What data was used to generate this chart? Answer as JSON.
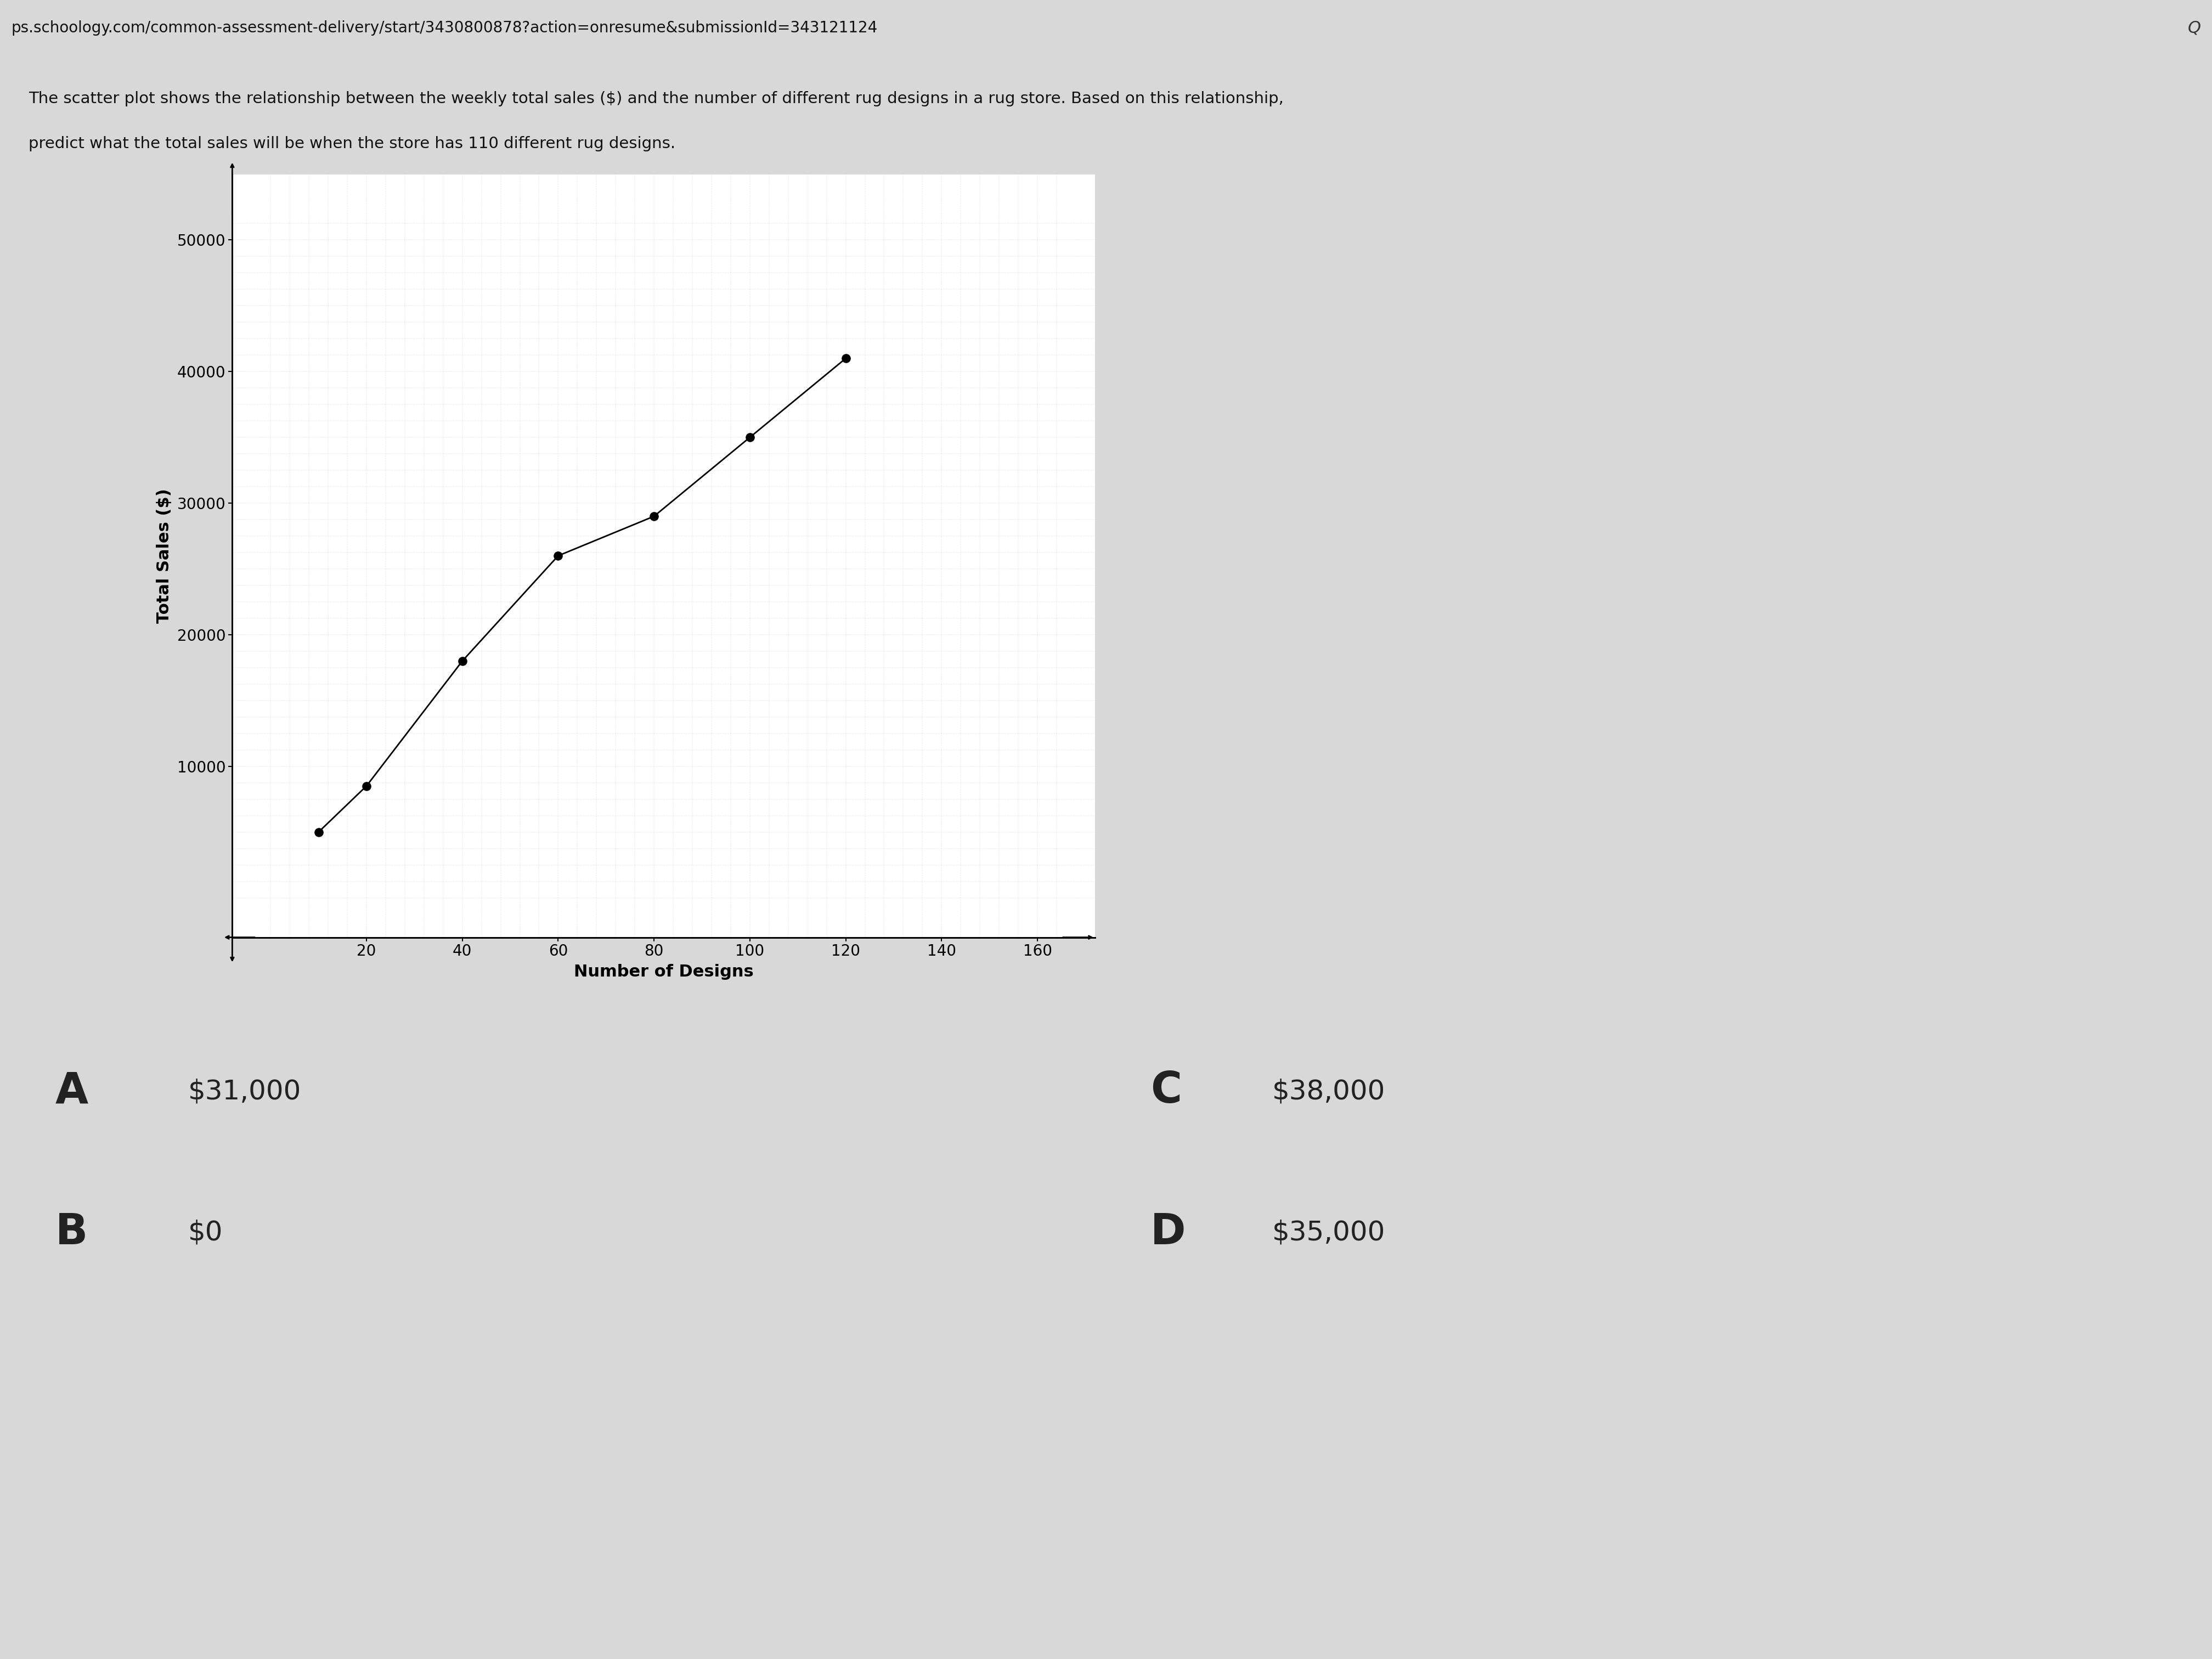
{
  "title_line1": "The scatter plot shows the relationship between the weekly total sales ($) and the number of different rug designs in a rug store. Based on this relationship,",
  "title_line2": "predict what the total sales will be when the store has 110 different rug designs.",
  "xlabel": "Number of Designs",
  "ylabel": "Total Sales ($)",
  "x_ticks": [
    20,
    40,
    60,
    80,
    100,
    120,
    140,
    160
  ],
  "y_ticks": [
    10000,
    20000,
    30000,
    40000,
    50000
  ],
  "xlim": [
    -8,
    172
  ],
  "ylim": [
    -3000,
    55000
  ],
  "scatter_x": [
    10,
    20,
    40,
    60,
    80,
    100,
    120
  ],
  "scatter_y": [
    5000,
    8500,
    18000,
    26000,
    29000,
    35000,
    41000
  ],
  "background_color": "#bcbcbc",
  "plot_bg_color": "#ffffff",
  "point_color": "#000000",
  "line_color": "#000000",
  "grid_color": "#999999",
  "answer_A_letter": "A",
  "answer_A": "$31,000",
  "answer_B_letter": "B",
  "answer_B": "$0",
  "answer_C_letter": "C",
  "answer_C": "$38,000",
  "answer_D_letter": "D",
  "answer_D": "$35,000",
  "url_text": "ps.schoology.com/common-assessment-delivery/start/3430800878?action=onresume&submissionId=343121124",
  "url_bg": "#e0e0e0",
  "taskbar_color": "#2a2a2a",
  "white_bg": "#d8d8d8"
}
